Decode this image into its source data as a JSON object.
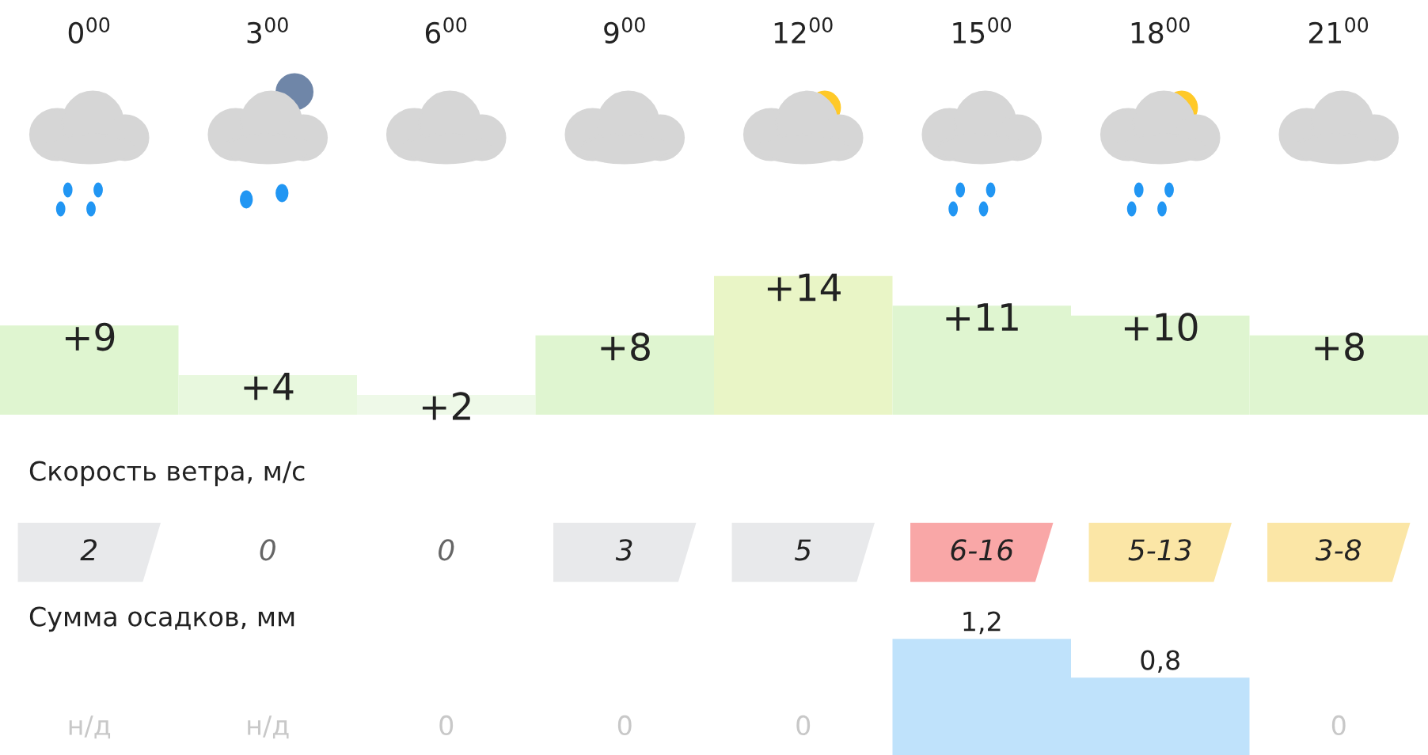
{
  "chart_data": [
    {
      "type": "bar",
      "categories": [
        "0$^{00}$",
        "3$^{00}$",
        "6$^{00}$",
        "9$^{00}$",
        "12$^{00}$",
        "15$^{00}$",
        "18$^{00}$",
        "21$^{00}$"
      ],
      "values": [
        9,
        4,
        2,
        8,
        14,
        11,
        10,
        8
      ],
      "value_labels": [
        "+9",
        "+4",
        "+2",
        "+8",
        "+14",
        "+11",
        "+10",
        "+8"
      ],
      "colors": [
        "#dff5d0",
        "#e8f8de",
        "#eef9e8",
        "#dff5d0",
        "#e9f5c6",
        "#dff5d0",
        "#dff5d0",
        "#dff5d0"
      ],
      "grid": false
    },
    {
      "type": "other",
      "title": "Скорость ветра, м/с",
      "annotations": [
        "2",
        "0",
        "0",
        "3",
        "5",
        "6-16",
        "5-13",
        "3-8"
      ],
      "colors": [
        "#e8e9eb",
        null,
        null,
        "#e8e9eb",
        "#e8e9eb",
        "#f9a7a7",
        "#fbe6a6",
        "#fbe6a6"
      ]
    },
    {
      "type": "bar",
      "title": "Сумма осадков, мм",
      "categories": [
        null,
        null,
        null,
        null,
        null,
        null,
        null,
        null
      ],
      "values": [
        null,
        null,
        0,
        0,
        0,
        1.2,
        0.8,
        0
      ],
      "value_labels": [
        "н/д",
        "н/д",
        "0",
        "0",
        "0",
        "1,2",
        "0,8",
        "0"
      ],
      "color": "#bfe2fb",
      "grid": false
    }
  ]
}
